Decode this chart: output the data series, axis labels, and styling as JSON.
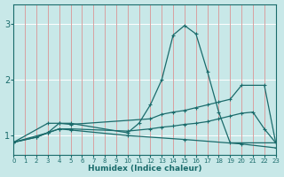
{
  "xlabel": "Humidex (Indice chaleur)",
  "bg_color": "#c8e8e8",
  "vgrid_color": "#d8a0a0",
  "hgrid_color": "#ffffff",
  "line_color": "#1a6b6b",
  "xlim": [
    0,
    23
  ],
  "ylim": [
    0.65,
    3.35
  ],
  "yticks": [
    1,
    2,
    3
  ],
  "xticks": [
    0,
    1,
    2,
    3,
    4,
    5,
    6,
    7,
    8,
    9,
    10,
    11,
    12,
    13,
    14,
    15,
    16,
    17,
    18,
    19,
    20,
    21,
    22,
    23
  ],
  "series": [
    {
      "x": [
        0,
        2,
        3,
        4,
        5,
        10,
        11,
        12,
        13,
        14,
        15,
        16,
        17,
        18,
        19,
        23
      ],
      "y": [
        0.88,
        0.97,
        1.05,
        1.22,
        1.22,
        1.05,
        1.22,
        1.55,
        2.0,
        2.8,
        2.97,
        2.82,
        2.15,
        1.42,
        0.87,
        0.87
      ]
    },
    {
      "x": [
        0,
        3,
        4,
        5,
        12,
        13,
        14,
        15,
        16,
        17,
        18,
        19,
        20,
        22,
        23
      ],
      "y": [
        0.88,
        1.22,
        1.22,
        1.2,
        1.3,
        1.38,
        1.42,
        1.45,
        1.5,
        1.55,
        1.6,
        1.65,
        1.9,
        1.9,
        0.87
      ]
    },
    {
      "x": [
        0,
        3,
        4,
        5,
        10,
        12,
        13,
        14,
        15,
        16,
        17,
        18,
        19,
        20,
        21,
        22,
        23
      ],
      "y": [
        0.88,
        1.05,
        1.12,
        1.12,
        1.08,
        1.12,
        1.15,
        1.17,
        1.2,
        1.22,
        1.25,
        1.3,
        1.35,
        1.4,
        1.42,
        1.12,
        0.87
      ]
    },
    {
      "x": [
        0,
        2,
        3,
        4,
        5,
        10,
        15,
        20,
        23
      ],
      "y": [
        0.88,
        0.97,
        1.05,
        1.12,
        1.1,
        1.0,
        0.93,
        0.85,
        0.78
      ]
    }
  ]
}
